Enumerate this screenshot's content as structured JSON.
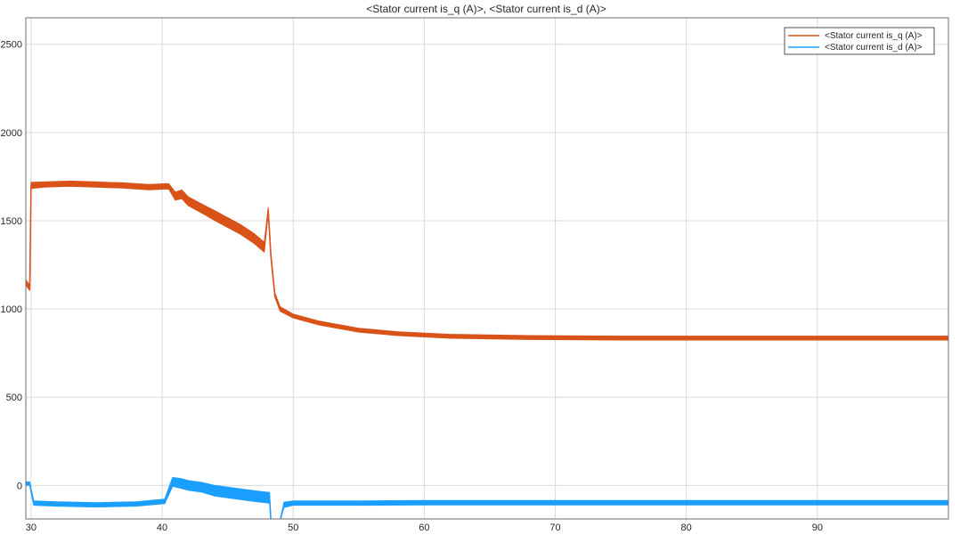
{
  "chart_data": {
    "type": "line",
    "title": "<Stator current is_q (A)>, <Stator current is_d (A)>",
    "xlabel": "",
    "ylabel": "",
    "xlim": [
      29.6,
      100
    ],
    "ylim": [
      -190,
      2650
    ],
    "xticks": [
      30,
      40,
      50,
      60,
      70,
      80,
      90
    ],
    "yticks": [
      0,
      500,
      1000,
      1500,
      2000,
      2500
    ],
    "grid": true,
    "legend_position": "top-right",
    "series": [
      {
        "name": "<Stator current is_q (A)>",
        "color": "#d95319",
        "x": [
          29.6,
          29.9,
          30.0,
          31,
          33,
          35,
          37,
          39,
          40.5,
          41,
          41.5,
          42,
          43,
          44,
          45,
          46,
          47,
          47.8,
          48.1,
          48.3,
          48.6,
          49,
          50,
          52,
          55,
          58,
          62,
          68,
          75,
          85,
          100
        ],
        "y": [
          1150,
          1120,
          1700,
          1705,
          1710,
          1705,
          1700,
          1690,
          1695,
          1640,
          1650,
          1610,
          1570,
          1530,
          1490,
          1450,
          1400,
          1350,
          1560,
          1300,
          1080,
          1000,
          960,
          920,
          880,
          860,
          845,
          838,
          835,
          835,
          835
        ],
        "band": [
          30,
          30,
          35,
          30,
          30,
          30,
          30,
          30,
          30,
          45,
          50,
          50,
          50,
          55,
          55,
          55,
          55,
          55,
          30,
          30,
          25,
          25,
          22,
          22,
          22,
          22,
          22,
          22,
          22,
          22,
          22
        ]
      },
      {
        "name": "<Stator current is_d (A)>",
        "color": "#1a9fff",
        "x": [
          29.6,
          29.9,
          30.2,
          32,
          35,
          38,
          40.2,
          40.8,
          41.5,
          42,
          43,
          44,
          45,
          46,
          47,
          48.2,
          48.3,
          49.0,
          49.3,
          50,
          55,
          60,
          70,
          80,
          90,
          100
        ],
        "y": [
          10,
          10,
          -100,
          -105,
          -110,
          -105,
          -90,
          20,
          10,
          0,
          -10,
          -30,
          -40,
          -50,
          -60,
          -70,
          -200,
          -200,
          -110,
          -100,
          -100,
          -98,
          -98,
          -98,
          -98,
          -98
        ],
        "band": [
          20,
          20,
          25,
          25,
          25,
          25,
          25,
          50,
          55,
          55,
          55,
          60,
          60,
          60,
          60,
          60,
          0,
          0,
          30,
          25,
          25,
          25,
          25,
          25,
          25,
          25
        ]
      }
    ]
  }
}
